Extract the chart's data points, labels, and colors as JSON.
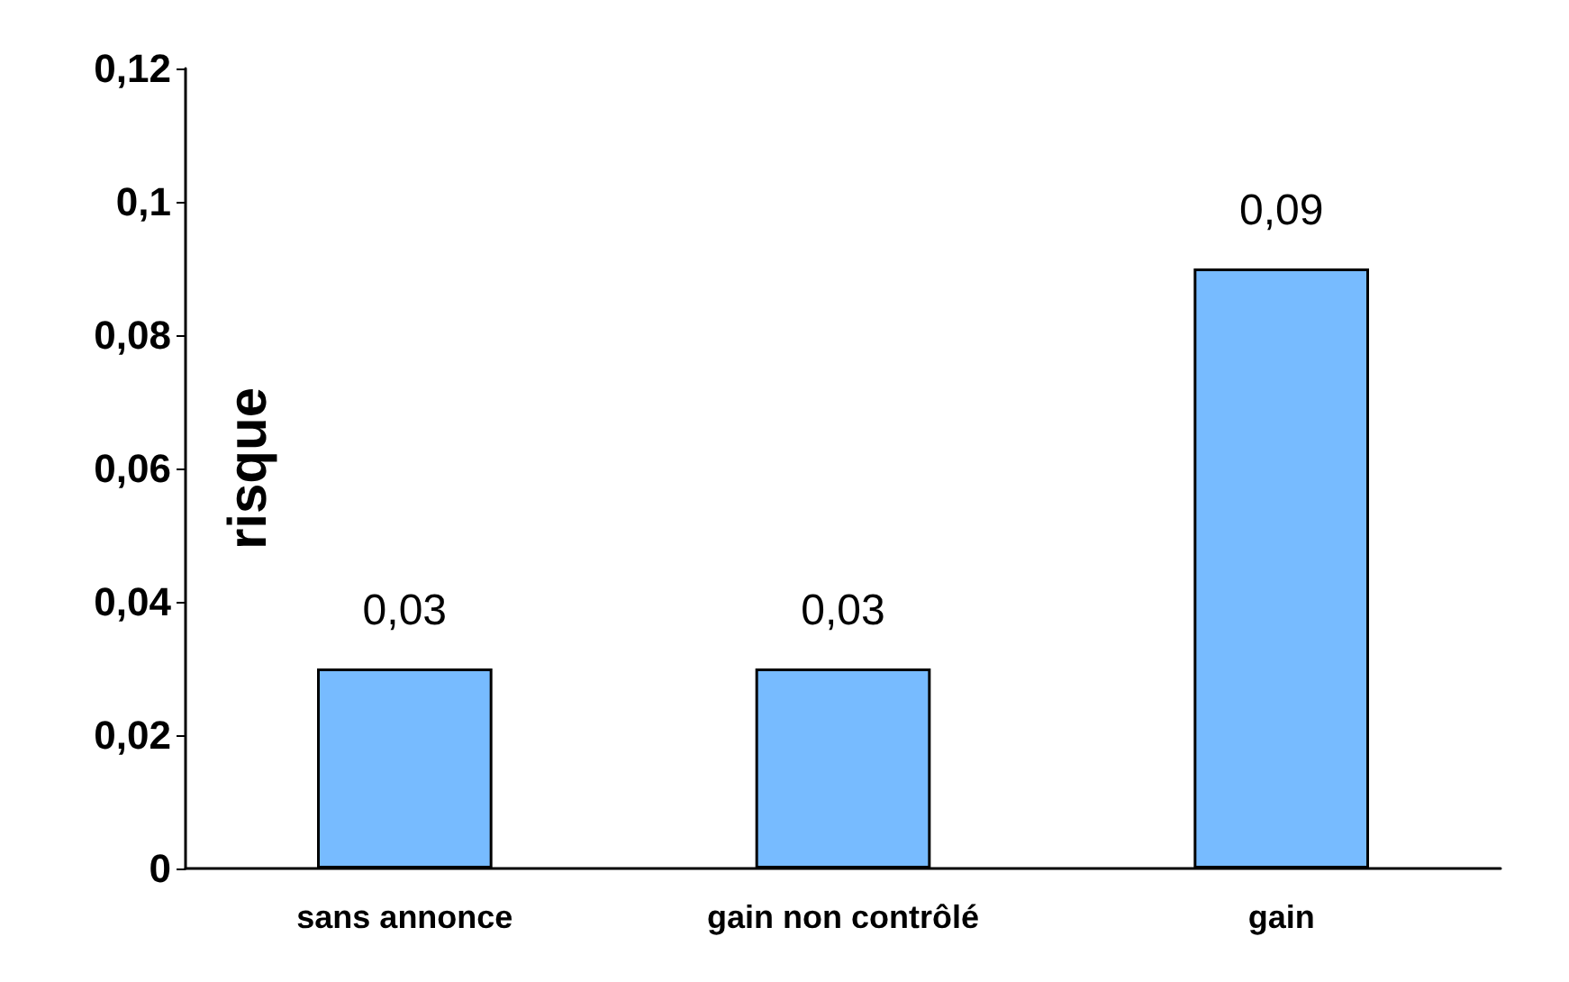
{
  "chart_data": {
    "type": "bar",
    "ylabel": "risque",
    "categories": [
      "sans annonce",
      "gain non contrôlé",
      "gain"
    ],
    "values": [
      0.03,
      0.03,
      0.09
    ],
    "color": "#77bbff",
    "value_labels": [
      "0,03",
      "0,03",
      "0,09"
    ],
    "ylim": [
      0,
      0.12
    ],
    "yticks": [
      {
        "value": 0,
        "label": "0"
      },
      {
        "value": 0.02,
        "label": "0,02"
      },
      {
        "value": 0.04,
        "label": "0,04"
      },
      {
        "value": 0.06,
        "label": "0,06"
      },
      {
        "value": 0.08,
        "label": "0,08"
      },
      {
        "value": 0.1,
        "label": "0,1"
      },
      {
        "value": 0.12,
        "label": "0,12"
      }
    ],
    "grid": false
  }
}
